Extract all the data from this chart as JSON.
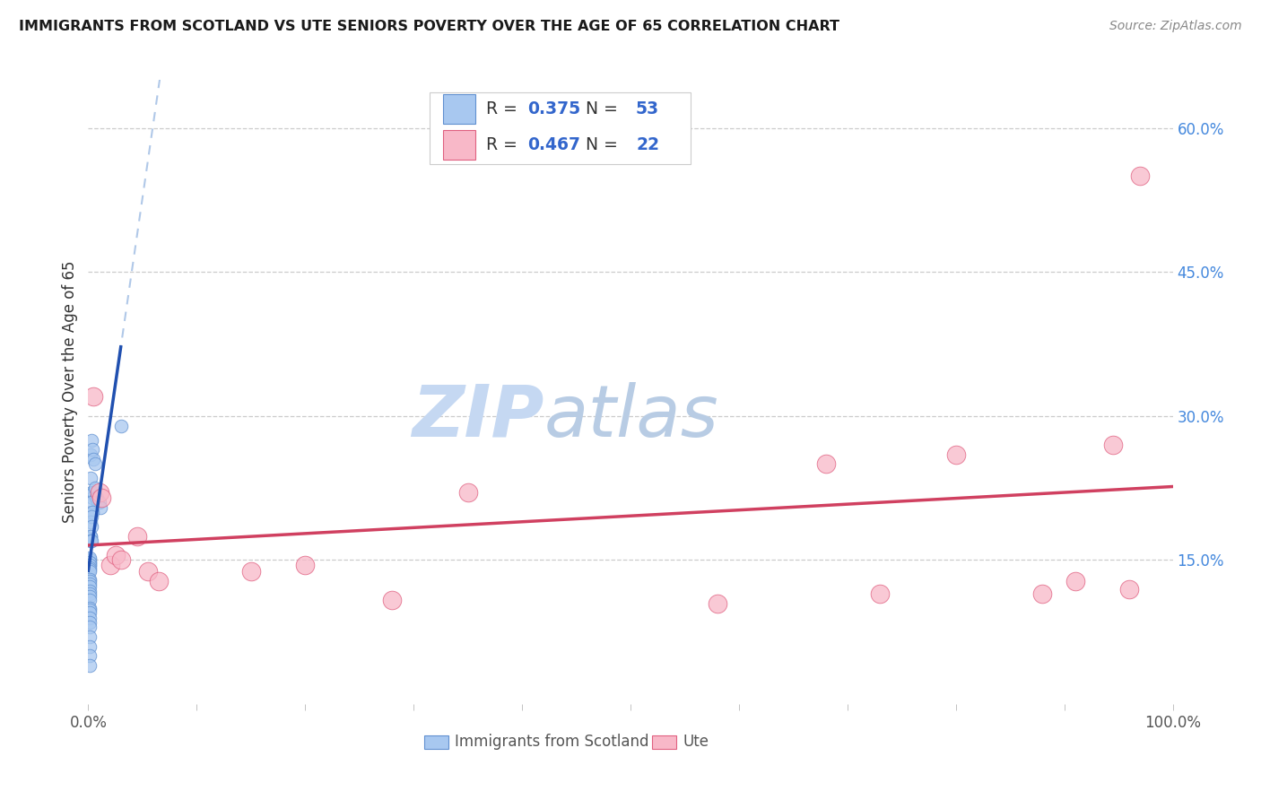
{
  "title": "IMMIGRANTS FROM SCOTLAND VS UTE SENIORS POVERTY OVER THE AGE OF 65 CORRELATION CHART",
  "source": "Source: ZipAtlas.com",
  "ylabel": "Seniors Poverty Over the Age of 65",
  "xlim": [
    0,
    1.0
  ],
  "ylim": [
    0,
    0.65
  ],
  "ytick_positions": [
    0.15,
    0.3,
    0.45,
    0.6
  ],
  "ytick_labels": [
    "15.0%",
    "30.0%",
    "45.0%",
    "60.0%"
  ],
  "scotland_R": 0.375,
  "scotland_N": 53,
  "ute_R": 0.467,
  "ute_N": 22,
  "scotland_color": "#a8c8f0",
  "ute_color": "#f8b8c8",
  "scotland_edge_color": "#6090d0",
  "ute_edge_color": "#e06080",
  "scotland_line_color": "#2050b0",
  "ute_line_color": "#d04060",
  "scotland_dashed_color": "#b0c8e8",
  "watermark_zip_color": "#c8d8f0",
  "watermark_atlas_color": "#c8d8e8",
  "background_color": "#ffffff",
  "grid_color": "#cccccc",
  "right_tick_color": "#4488dd",
  "scotland_x": [
    0.002,
    0.003,
    0.004,
    0.005,
    0.006,
    0.007,
    0.008,
    0.009,
    0.01,
    0.011,
    0.002,
    0.003,
    0.004,
    0.005,
    0.006,
    0.002,
    0.003,
    0.004,
    0.002,
    0.003,
    0.002,
    0.003,
    0.002,
    0.002,
    0.003,
    0.001,
    0.001,
    0.001,
    0.001,
    0.001,
    0.001,
    0.001,
    0.001,
    0.001,
    0.001,
    0.001,
    0.001,
    0.001,
    0.001,
    0.001,
    0.001,
    0.001,
    0.001,
    0.001,
    0.001,
    0.001,
    0.001,
    0.001,
    0.001,
    0.001,
    0.001,
    0.001,
    0.03
  ],
  "scotland_y": [
    0.235,
    0.22,
    0.215,
    0.22,
    0.225,
    0.215,
    0.215,
    0.21,
    0.21,
    0.205,
    0.26,
    0.275,
    0.265,
    0.255,
    0.25,
    0.2,
    0.21,
    0.2,
    0.19,
    0.195,
    0.175,
    0.185,
    0.175,
    0.17,
    0.17,
    0.145,
    0.148,
    0.15,
    0.152,
    0.148,
    0.145,
    0.142,
    0.14,
    0.138,
    0.13,
    0.128,
    0.125,
    0.122,
    0.118,
    0.115,
    0.112,
    0.108,
    0.1,
    0.098,
    0.095,
    0.09,
    0.085,
    0.08,
    0.07,
    0.06,
    0.05,
    0.04,
    0.29
  ],
  "ute_x": [
    0.005,
    0.01,
    0.012,
    0.02,
    0.025,
    0.03,
    0.045,
    0.055,
    0.065,
    0.15,
    0.2,
    0.28,
    0.35,
    0.58,
    0.68,
    0.73,
    0.8,
    0.88,
    0.91,
    0.945,
    0.96,
    0.97
  ],
  "ute_y": [
    0.32,
    0.22,
    0.215,
    0.145,
    0.155,
    0.15,
    0.175,
    0.138,
    0.128,
    0.138,
    0.145,
    0.108,
    0.22,
    0.105,
    0.25,
    0.115,
    0.26,
    0.115,
    0.128,
    0.27,
    0.12,
    0.55
  ]
}
